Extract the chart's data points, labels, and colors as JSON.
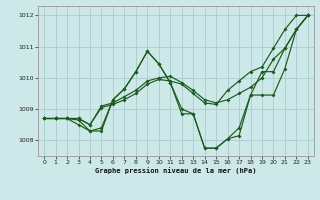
{
  "title": "Graphe pression niveau de la mer (hPa)",
  "bg_color": "#cce8e8",
  "grid_color": "#aacccc",
  "line_color": "#1a5c1a",
  "xlim": [
    -0.5,
    23.5
  ],
  "ylim": [
    1007.5,
    1012.3
  ],
  "yticks": [
    1008,
    1009,
    1010,
    1011,
    1012
  ],
  "xticks": [
    0,
    1,
    2,
    3,
    4,
    5,
    6,
    7,
    8,
    9,
    10,
    11,
    12,
    13,
    14,
    15,
    16,
    17,
    18,
    19,
    20,
    21,
    22,
    23
  ],
  "series1_x": [
    0,
    1,
    2,
    3,
    4,
    5,
    6,
    7,
    8,
    9,
    10,
    11,
    12,
    13,
    14,
    15,
    16,
    17,
    18,
    19,
    20,
    21,
    22,
    23
  ],
  "series1_y": [
    1008.7,
    1008.7,
    1008.7,
    1008.5,
    1008.3,
    1008.4,
    1009.3,
    1009.65,
    1010.2,
    1010.85,
    1010.45,
    1009.85,
    1009.0,
    1008.85,
    1007.75,
    1007.75,
    1008.05,
    1008.4,
    1009.45,
    1010.2,
    1010.2,
    1010.95,
    1011.55,
    1012.0
  ],
  "series2_x": [
    0,
    1,
    2,
    3,
    4,
    5,
    6,
    7,
    8,
    9,
    10,
    11,
    12,
    13,
    14,
    15,
    16,
    17,
    18,
    19,
    20,
    21,
    22,
    23
  ],
  "series2_y": [
    1008.7,
    1008.7,
    1008.7,
    1008.7,
    1008.5,
    1009.05,
    1009.15,
    1009.3,
    1009.5,
    1009.8,
    1009.95,
    1009.9,
    1009.8,
    1009.5,
    1009.2,
    1009.15,
    1009.6,
    1009.9,
    1010.2,
    1010.35,
    1010.95,
    1011.55,
    1012.0,
    1012.0
  ],
  "series3_x": [
    0,
    1,
    2,
    3,
    4,
    5,
    6,
    7,
    8,
    9,
    10,
    11,
    12,
    13,
    14,
    15,
    16,
    17,
    18,
    19,
    20,
    21,
    22,
    23
  ],
  "series3_y": [
    1008.7,
    1008.7,
    1008.7,
    1008.7,
    1008.5,
    1009.1,
    1009.2,
    1009.4,
    1009.6,
    1009.9,
    1010.0,
    1010.05,
    1009.85,
    1009.6,
    1009.3,
    1009.2,
    1009.3,
    1009.5,
    1009.7,
    1010.0,
    1010.6,
    1010.95,
    1011.55,
    1012.0
  ],
  "series4_x": [
    0,
    1,
    2,
    3,
    4,
    5,
    6,
    7,
    8,
    9,
    10,
    11,
    12,
    13,
    14,
    15,
    16,
    17,
    18,
    19,
    20,
    21,
    22,
    23
  ],
  "series4_y": [
    1008.7,
    1008.7,
    1008.7,
    1008.65,
    1008.3,
    1008.3,
    1009.3,
    1009.65,
    1010.2,
    1010.85,
    1010.45,
    1009.85,
    1008.85,
    1008.85,
    1007.75,
    1007.75,
    1008.05,
    1008.15,
    1009.45,
    1009.45,
    1009.45,
    1010.3,
    1011.55,
    1012.0
  ]
}
